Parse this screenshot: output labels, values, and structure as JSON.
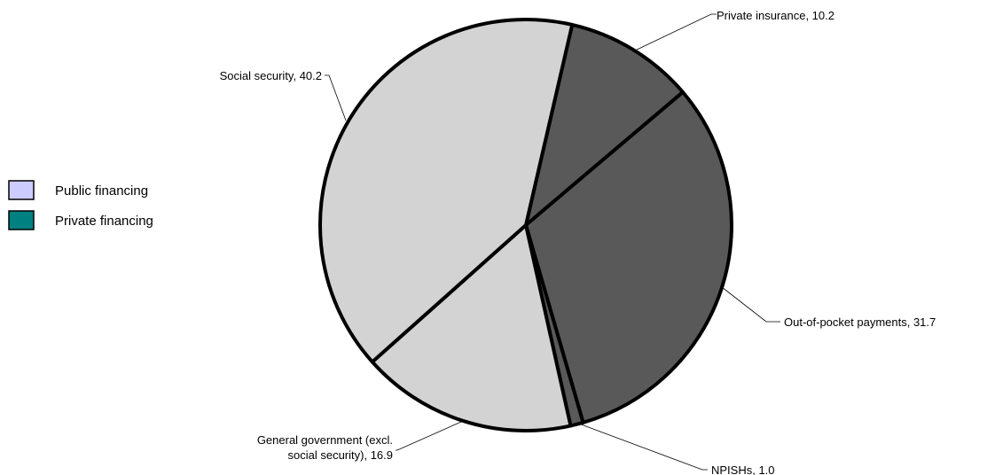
{
  "chart_data": {
    "type": "pie",
    "slices": [
      {
        "label": "Private insurance, 10.2",
        "value": 10.2,
        "group": "private",
        "color": "#595959"
      },
      {
        "label": "Out-of-pocket payments, 31.7",
        "value": 31.7,
        "group": "private",
        "color": "#595959"
      },
      {
        "label": "NPISHs, 1.0",
        "value": 1.0,
        "group": "private",
        "color": "#595959"
      },
      {
        "label_lines": [
          "General government (excl.",
          "social security), 16.9"
        ],
        "value": 16.9,
        "group": "public",
        "color": "#d3d3d3"
      },
      {
        "label": "Social security, 40.2",
        "value": 40.2,
        "group": "public",
        "color": "#d3d3d3"
      }
    ],
    "legend": {
      "placement": "left",
      "entries": [
        {
          "label": "Public financing",
          "color": "#ccccff"
        },
        {
          "label": "Private financing",
          "color": "#008080"
        }
      ]
    }
  }
}
